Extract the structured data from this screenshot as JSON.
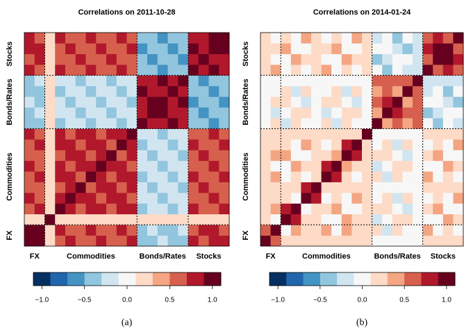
{
  "chart_data": [
    {
      "type": "heatmap",
      "title": "Correlations on 2011‑10‑28",
      "caption": "(a)",
      "groups": [
        "FX",
        "Commodities",
        "Bonds/Rates",
        "Stocks"
      ],
      "group_sizes": [
        2,
        9,
        5,
        4
      ],
      "values": [
        [
          1
        ],
        [
          0.9,
          1
        ],
        [
          0.1,
          0.1,
          1
        ],
        [
          0.6,
          0.7,
          0.1,
          1
        ],
        [
          0.7,
          0.5,
          0.1,
          0.8,
          1
        ],
        [
          0.5,
          0.6,
          0.1,
          0.6,
          0.7,
          1
        ],
        [
          0.6,
          0.7,
          0.1,
          0.7,
          0.8,
          0.6,
          1
        ],
        [
          0.7,
          0.5,
          0.1,
          0.8,
          0.6,
          0.7,
          0.8,
          1
        ],
        [
          0.5,
          0.6,
          0.1,
          0.6,
          0.7,
          0.8,
          0.6,
          0.7,
          1
        ],
        [
          0.6,
          0.7,
          0.1,
          0.7,
          0.8,
          0.6,
          0.7,
          0.8,
          0.6,
          1
        ],
        [
          0.7,
          0.5,
          0.1,
          0.8,
          0.6,
          0.7,
          0.8,
          0.6,
          0.7,
          0.8,
          1
        ],
        [
          -0.5,
          -0.4,
          0.1,
          -0.4,
          -0.3,
          -0.2,
          -0.4,
          -0.3,
          -0.2,
          -0.4,
          -0.3,
          1
        ],
        [
          -0.4,
          -0.3,
          0.1,
          -0.3,
          -0.2,
          -0.4,
          -0.3,
          -0.2,
          -0.4,
          -0.3,
          -0.2,
          0.7,
          1
        ],
        [
          -0.3,
          -0.5,
          0.1,
          -0.2,
          -0.4,
          -0.3,
          -0.2,
          -0.4,
          -0.3,
          -0.2,
          -0.4,
          0.8,
          0.9,
          1
        ],
        [
          -0.5,
          -0.4,
          0.1,
          -0.4,
          -0.3,
          -0.2,
          -0.4,
          -0.3,
          -0.2,
          -0.4,
          -0.3,
          0.9,
          0.7,
          0.8,
          1
        ],
        [
          -0.4,
          -0.3,
          0.1,
          -0.3,
          -0.2,
          -0.4,
          -0.3,
          -0.2,
          -0.4,
          -0.3,
          -0.2,
          0.7,
          0.8,
          0.9,
          0.7,
          1
        ],
        [
          0.8,
          0.6,
          0.1,
          0.7,
          0.5,
          0.6,
          0.7,
          0.5,
          0.6,
          0.7,
          0.5,
          -0.5,
          -0.4,
          -0.6,
          -0.5,
          -0.4,
          1
        ],
        [
          0.6,
          0.7,
          0.1,
          0.5,
          0.6,
          0.7,
          0.5,
          0.6,
          0.7,
          0.5,
          0.6,
          -0.4,
          -0.6,
          -0.5,
          -0.4,
          -0.6,
          0.8,
          1
        ],
        [
          0.7,
          0.8,
          0.1,
          0.6,
          0.7,
          0.5,
          0.6,
          0.7,
          0.5,
          0.6,
          0.7,
          -0.6,
          -0.5,
          -0.4,
          -0.6,
          -0.5,
          0.9,
          0.7,
          1
        ],
        [
          0.8,
          0.6,
          0.1,
          0.7,
          0.5,
          0.6,
          0.7,
          0.5,
          0.6,
          0.7,
          0.5,
          -0.5,
          -0.4,
          -0.6,
          -0.5,
          -0.4,
          0.7,
          0.8,
          0.9,
          1
        ]
      ],
      "colors": [
        "#053061",
        "#2166ac",
        "#4393c3",
        "#92c5de",
        "#d1e5f0",
        "#f7f7f7",
        "#fddbc7",
        "#f4a582",
        "#d6604d",
        "#b2182b",
        "#67001f"
      ],
      "zlim": [
        -1.1,
        1.1
      ],
      "colorbar_ticks": [
        {
          "value": -1,
          "label": "−1.0"
        },
        {
          "value": -0.5,
          "label": "−0.5"
        },
        {
          "value": 0,
          "label": "0.0"
        },
        {
          "value": 0.5,
          "label": "0.5"
        },
        {
          "value": 1,
          "label": "1.0"
        }
      ]
    },
    {
      "type": "heatmap",
      "title": "Correlations on 2014‑01‑24",
      "caption": "(b)",
      "groups": [
        "FX",
        "Commodities",
        "Bonds/Rates",
        "Stocks"
      ],
      "group_sizes": [
        2,
        9,
        5,
        4
      ],
      "values": [
        [
          1
        ],
        [
          0.5,
          1
        ],
        [
          0.2,
          0,
          1
        ],
        [
          0.2,
          0.3,
          0.8,
          1
        ],
        [
          0.2,
          0.1,
          0.2,
          -0.1,
          1
        ],
        [
          0.2,
          0.2,
          0.1,
          0.1,
          0.8,
          1
        ],
        [
          0.2,
          0.4,
          -0.1,
          0.2,
          0,
          0.1,
          1
        ],
        [
          0.2,
          0,
          0,
          0.3,
          0.2,
          0.1,
          0.8,
          1
        ],
        [
          0.2,
          0.3,
          0.3,
          0,
          -0.1,
          0.1,
          0.2,
          0.3,
          1
        ],
        [
          0.2,
          0.1,
          0.2,
          -0.1,
          0.3,
          0.1,
          0,
          0.2,
          0.8,
          1
        ],
        [
          0.2,
          0.2,
          0.1,
          0.1,
          0.1,
          0.1,
          0.1,
          0.1,
          0.1,
          0.1,
          1
        ],
        [
          0,
          0.2,
          -0.2,
          0.1,
          -0.1,
          0,
          0.2,
          -0.2,
          0.1,
          -0.1,
          0,
          1
        ],
        [
          0,
          -0.2,
          -0.1,
          0.2,
          0.1,
          0,
          -0.2,
          -0.1,
          0.2,
          0.1,
          0,
          0.3,
          1
        ],
        [
          0,
          0.1,
          0.2,
          -0.1,
          -0.2,
          0,
          0.1,
          0.2,
          -0.1,
          -0.2,
          0,
          0.6,
          0.7,
          1
        ],
        [
          0,
          -0.1,
          0.1,
          -0.2,
          0.2,
          0,
          -0.1,
          0.1,
          -0.2,
          0.2,
          0,
          0.4,
          0.6,
          0.3,
          1
        ],
        [
          0,
          0,
          0,
          0,
          0,
          0,
          0,
          0,
          0,
          0,
          0,
          0.5,
          0.5,
          0.5,
          0.5,
          1
        ],
        [
          0.1,
          0.3,
          -0.1,
          0.2,
          0,
          0.1,
          0.3,
          -0.1,
          0.2,
          0,
          0.1,
          0,
          -0.4,
          -0.1,
          -0.3,
          -0.2,
          1
        ],
        [
          0.1,
          -0.1,
          0,
          0.3,
          0.2,
          0.1,
          -0.1,
          0,
          0.3,
          0.2,
          0.1,
          -0.4,
          -0.3,
          0,
          -0.1,
          -0.2,
          0.5,
          1
        ],
        [
          0.1,
          0.2,
          0.3,
          0,
          -0.1,
          0.1,
          0.2,
          0.3,
          0,
          -0.1,
          0.1,
          -0.1,
          0,
          -0.3,
          -0.4,
          -0.2,
          0.8,
          0.9,
          1
        ],
        [
          0.1,
          0,
          0.2,
          -0.1,
          0.3,
          0.1,
          0,
          0.2,
          -0.1,
          0.3,
          0.1,
          -0.3,
          -0.1,
          -0.4,
          0,
          -0.2,
          0.6,
          0.8,
          0.5,
          1
        ]
      ],
      "colors": [
        "#053061",
        "#2166ac",
        "#4393c3",
        "#92c5de",
        "#d1e5f0",
        "#f7f7f7",
        "#fddbc7",
        "#f4a582",
        "#d6604d",
        "#b2182b",
        "#67001f"
      ],
      "zlim": [
        -1.1,
        1.1
      ],
      "colorbar_ticks": [
        {
          "value": -1,
          "label": "−1.0"
        },
        {
          "value": -0.5,
          "label": "−0.5"
        },
        {
          "value": 0,
          "label": "0.0"
        },
        {
          "value": 0.5,
          "label": "0.5"
        },
        {
          "value": 1,
          "label": "1.0"
        }
      ]
    }
  ]
}
